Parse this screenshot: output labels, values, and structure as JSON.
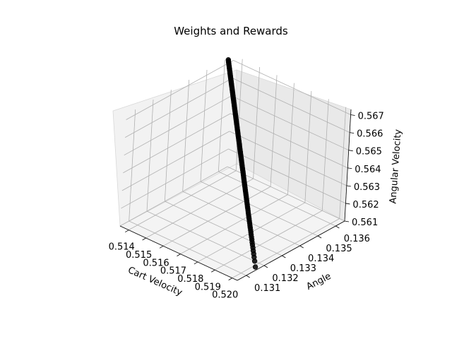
{
  "chart_data": {
    "type": "scatter",
    "title": "Weights and Rewards",
    "xlabel": "Cart Velocity",
    "ylabel": "Angle",
    "zlabel": "Angular Velocity",
    "x_ticks": [
      "0.514",
      "0.515",
      "0.516",
      "0.517",
      "0.518",
      "0.519",
      "0.520"
    ],
    "y_ticks": [
      "0.131",
      "0.132",
      "0.133",
      "0.134",
      "0.135",
      "0.136"
    ],
    "z_ticks": [
      "0.561",
      "0.562",
      "0.563",
      "0.564",
      "0.565",
      "0.566",
      "0.567"
    ],
    "xlim": [
      0.5135,
      0.5203
    ],
    "ylim": [
      0.1305,
      0.1365
    ],
    "zlim": [
      0.561,
      0.5673
    ],
    "grid": true,
    "projection": "3d",
    "series": [
      {
        "color": "#000000",
        "marker": "circle",
        "start": {
          "x": 0.5203,
          "y": 0.1315,
          "z": 0.5612
        },
        "end": {
          "x": 0.5135,
          "y": 0.1362,
          "z": 0.5672
        },
        "point_count": 120
      }
    ]
  }
}
